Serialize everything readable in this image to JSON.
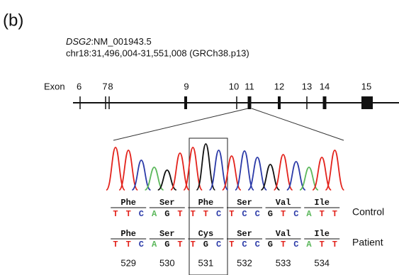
{
  "panel_label": "(b)",
  "gene": {
    "symbol": "DSG2",
    "transcript": ":NM_001943.5",
    "location": "chr18:31,496,004-31,551,008 (GRCh38.p13)"
  },
  "exon_map": {
    "label": "Exon",
    "exons": [
      "6",
      "7",
      "8",
      "9",
      "10",
      "11",
      "12",
      "13",
      "14",
      "15"
    ]
  },
  "base_colors": {
    "T": "#e3231c",
    "C": "#2b3aa8",
    "A": "#5cb85c",
    "G": "#111111"
  },
  "sequences": {
    "codons": [
      "529",
      "530",
      "531",
      "532",
      "533",
      "534"
    ],
    "rows": [
      {
        "name": "Control",
        "amino_acids": [
          "Phe",
          "Ser",
          "Phe",
          "Ser",
          "Val",
          "Ile"
        ],
        "bases": [
          "T",
          "T",
          "C",
          "A",
          "G",
          "T",
          "T",
          "T",
          "C",
          "T",
          "C",
          "C",
          "G",
          "T",
          "C",
          "A",
          "T",
          "T"
        ]
      },
      {
        "name": "Patient",
        "amino_acids": [
          "Phe",
          "Ser",
          "Cys",
          "Ser",
          "Val",
          "Ile"
        ],
        "bases": [
          "T",
          "T",
          "C",
          "A",
          "G",
          "T",
          "T",
          "G",
          "C",
          "T",
          "C",
          "C",
          "G",
          "T",
          "C",
          "A",
          "T",
          "T"
        ]
      }
    ]
  }
}
